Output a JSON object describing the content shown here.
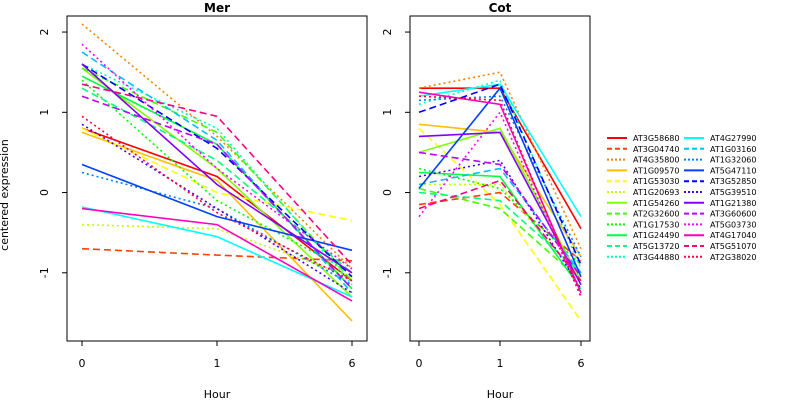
{
  "chart_data": {
    "type": "line",
    "ylabel": "centered expression",
    "xlabel": "Hour",
    "x_categories": [
      "0",
      "1",
      "6"
    ],
    "y_ticks": [
      -1,
      0,
      1,
      2
    ],
    "ylim": [
      -1.85,
      2.2
    ],
    "grid": false,
    "legend_position": "right",
    "panels": [
      {
        "title": "Mer",
        "series": [
          {
            "name": "AT3G58680",
            "values": [
              0.8,
              0.2,
              -1.1
            ]
          },
          {
            "name": "AT3G04740",
            "values": [
              -0.7,
              -0.78,
              -0.85
            ]
          },
          {
            "name": "AT4G35800",
            "values": [
              2.1,
              0.7,
              -0.95
            ]
          },
          {
            "name": "AT1G09570",
            "values": [
              0.75,
              0.15,
              -1.6
            ]
          },
          {
            "name": "AT1G53030",
            "values": [
              0.8,
              0.0,
              -0.35
            ]
          },
          {
            "name": "AT1G20693",
            "values": [
              -0.4,
              -0.45,
              -1.05
            ]
          },
          {
            "name": "AT1G54260",
            "values": [
              1.55,
              0.3,
              -1.3
            ]
          },
          {
            "name": "AT2G32600",
            "values": [
              1.55,
              0.75,
              -1.1
            ]
          },
          {
            "name": "AT1G17530",
            "values": [
              1.4,
              -0.1,
              -1.0
            ]
          },
          {
            "name": "AT1G24490",
            "values": [
              1.45,
              0.6,
              -1.2
            ]
          },
          {
            "name": "AT5G13720",
            "values": [
              1.3,
              0.4,
              -1.0
            ]
          },
          {
            "name": "AT3G44880",
            "values": [
              1.6,
              0.8,
              -1.15
            ]
          },
          {
            "name": "AT4G27990",
            "values": [
              -0.18,
              -0.55,
              -1.3
            ]
          },
          {
            "name": "AT1G03160",
            "values": [
              1.75,
              0.65,
              -1.25
            ]
          },
          {
            "name": "AT1G32060",
            "values": [
              0.25,
              -0.2,
              -1.15
            ]
          },
          {
            "name": "AT5G47110",
            "values": [
              0.35,
              -0.3,
              -0.72
            ]
          },
          {
            "name": "AT3G52850",
            "values": [
              1.6,
              0.55,
              -1.05
            ]
          },
          {
            "name": "AT5G39510",
            "values": [
              0.85,
              -0.2,
              -1.25
            ]
          },
          {
            "name": "AT1G21380",
            "values": [
              1.6,
              0.1,
              -1.0
            ]
          },
          {
            "name": "AT3G60600",
            "values": [
              1.2,
              0.6,
              -1.2
            ]
          },
          {
            "name": "AT5G03730",
            "values": [
              1.85,
              0.3,
              -0.95
            ]
          },
          {
            "name": "AT4G17040",
            "values": [
              -0.2,
              -0.4,
              -1.35
            ]
          },
          {
            "name": "AT5G51070",
            "values": [
              1.35,
              0.95,
              -0.9
            ]
          },
          {
            "name": "AT2G38020",
            "values": [
              0.95,
              -0.25,
              -1.1
            ]
          }
        ]
      },
      {
        "title": "Cot",
        "series": [
          {
            "name": "AT3G58680",
            "values": [
              1.3,
              1.3,
              -0.45
            ]
          },
          {
            "name": "AT3G04740",
            "values": [
              -0.15,
              0.0,
              -0.85
            ]
          },
          {
            "name": "AT4G35800",
            "values": [
              1.3,
              1.5,
              -0.7
            ]
          },
          {
            "name": "AT1G09570",
            "values": [
              0.85,
              0.75,
              -0.8
            ]
          },
          {
            "name": "AT1G53030",
            "values": [
              0.8,
              -0.15,
              -1.6
            ]
          },
          {
            "name": "AT1G20693",
            "values": [
              0.1,
              0.1,
              -1.1
            ]
          },
          {
            "name": "AT1G54260",
            "values": [
              0.5,
              0.8,
              -1.1
            ]
          },
          {
            "name": "AT2G32600",
            "values": [
              0.05,
              -0.2,
              -1.1
            ]
          },
          {
            "name": "AT1G17530",
            "values": [
              0.3,
              0.05,
              -0.9
            ]
          },
          {
            "name": "AT1G24490",
            "values": [
              0.25,
              0.2,
              -1.2
            ]
          },
          {
            "name": "AT5G13720",
            "values": [
              0.0,
              -0.1,
              -1.0
            ]
          },
          {
            "name": "AT3G44880",
            "values": [
              1.1,
              1.4,
              -0.95
            ]
          },
          {
            "name": "AT4G27990",
            "values": [
              1.2,
              1.35,
              -0.3
            ]
          },
          {
            "name": "AT1G03160",
            "values": [
              0.1,
              0.3,
              -1.0
            ]
          },
          {
            "name": "AT1G32060",
            "values": [
              1.15,
              1.2,
              -0.8
            ]
          },
          {
            "name": "AT5G47110",
            "values": [
              0.05,
              1.3,
              -1.05
            ]
          },
          {
            "name": "AT3G52850",
            "values": [
              1.0,
              1.35,
              -0.9
            ]
          },
          {
            "name": "AT5G39510",
            "values": [
              0.2,
              0.4,
              -1.2
            ]
          },
          {
            "name": "AT1G21380",
            "values": [
              0.7,
              0.75,
              -1.15
            ]
          },
          {
            "name": "AT3G60600",
            "values": [
              0.5,
              0.35,
              -1.05
            ]
          },
          {
            "name": "AT5G03730",
            "values": [
              -0.3,
              1.0,
              -1.3
            ]
          },
          {
            "name": "AT4G17040",
            "values": [
              1.25,
              1.1,
              -1.25
            ]
          },
          {
            "name": "AT5G51070",
            "values": [
              -0.2,
              0.15,
              -1.1
            ]
          },
          {
            "name": "AT2G38020",
            "values": [
              1.2,
              1.15,
              -1.3
            ]
          }
        ]
      }
    ],
    "legend": [
      {
        "name": "AT3G58680",
        "color": "#ff0000",
        "dash": "solid"
      },
      {
        "name": "AT3G04740",
        "color": "#ff4000",
        "dash": "dashed"
      },
      {
        "name": "AT4G35800",
        "color": "#ff8000",
        "dash": "dotted"
      },
      {
        "name": "AT1G09570",
        "color": "#ffbf00",
        "dash": "solid"
      },
      {
        "name": "AT1G53030",
        "color": "#ffff00",
        "dash": "dashed"
      },
      {
        "name": "AT1G20693",
        "color": "#bfff00",
        "dash": "dotted"
      },
      {
        "name": "AT1G54260",
        "color": "#80ff00",
        "dash": "solid"
      },
      {
        "name": "AT2G32600",
        "color": "#40ff00",
        "dash": "dashed"
      },
      {
        "name": "AT1G17530",
        "color": "#00ff00",
        "dash": "dotted"
      },
      {
        "name": "AT1G24490",
        "color": "#00ff40",
        "dash": "solid"
      },
      {
        "name": "AT5G13720",
        "color": "#00ff80",
        "dash": "dashed"
      },
      {
        "name": "AT3G44880",
        "color": "#00ffbf",
        "dash": "dotted"
      },
      {
        "name": "AT4G27990",
        "color": "#00ffff",
        "dash": "solid"
      },
      {
        "name": "AT1G03160",
        "color": "#00bfff",
        "dash": "dashed"
      },
      {
        "name": "AT1G32060",
        "color": "#0080ff",
        "dash": "dotted"
      },
      {
        "name": "AT5G47110",
        "color": "#0040ff",
        "dash": "solid"
      },
      {
        "name": "AT3G52850",
        "color": "#0000ff",
        "dash": "dashed"
      },
      {
        "name": "AT5G39510",
        "color": "#4000ff",
        "dash": "dotted"
      },
      {
        "name": "AT1G21380",
        "color": "#8000ff",
        "dash": "solid"
      },
      {
        "name": "AT3G60600",
        "color": "#bf00ff",
        "dash": "dashed"
      },
      {
        "name": "AT5G03730",
        "color": "#ff00ff",
        "dash": "dotted"
      },
      {
        "name": "AT4G17040",
        "color": "#ff00bf",
        "dash": "solid"
      },
      {
        "name": "AT5G51070",
        "color": "#ff0080",
        "dash": "dashed"
      },
      {
        "name": "AT2G38020",
        "color": "#ff0040",
        "dash": "dotted"
      }
    ]
  }
}
